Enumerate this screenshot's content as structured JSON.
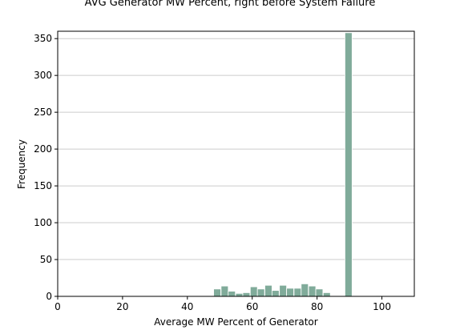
{
  "chart_data": {
    "type": "bar",
    "title": "AVG Generator MW Percent, right before System Failure",
    "xlabel": "Average MW Percent of Generator",
    "ylabel": "Frequency",
    "xlim": [
      0,
      110
    ],
    "ylim": [
      0,
      360
    ],
    "xticks": [
      0,
      20,
      40,
      60,
      80,
      100
    ],
    "yticks": [
      0,
      50,
      100,
      150,
      200,
      250,
      300,
      350
    ],
    "grid": "horizontal",
    "bar_color": "#80ab9a",
    "bin_width": 2.2,
    "bins": [
      {
        "x": 49.2,
        "value": 10
      },
      {
        "x": 51.5,
        "value": 14
      },
      {
        "x": 53.7,
        "value": 7
      },
      {
        "x": 56.0,
        "value": 4
      },
      {
        "x": 58.2,
        "value": 5
      },
      {
        "x": 60.5,
        "value": 13
      },
      {
        "x": 62.7,
        "value": 10
      },
      {
        "x": 65.0,
        "value": 15
      },
      {
        "x": 67.2,
        "value": 8
      },
      {
        "x": 69.5,
        "value": 15
      },
      {
        "x": 71.7,
        "value": 11
      },
      {
        "x": 74.0,
        "value": 11
      },
      {
        "x": 76.2,
        "value": 17
      },
      {
        "x": 78.5,
        "value": 14
      },
      {
        "x": 80.7,
        "value": 10
      },
      {
        "x": 83.0,
        "value": 5
      },
      {
        "x": 89.7,
        "value": 358
      },
      {
        "x": 99.2,
        "value": 1
      }
    ]
  }
}
